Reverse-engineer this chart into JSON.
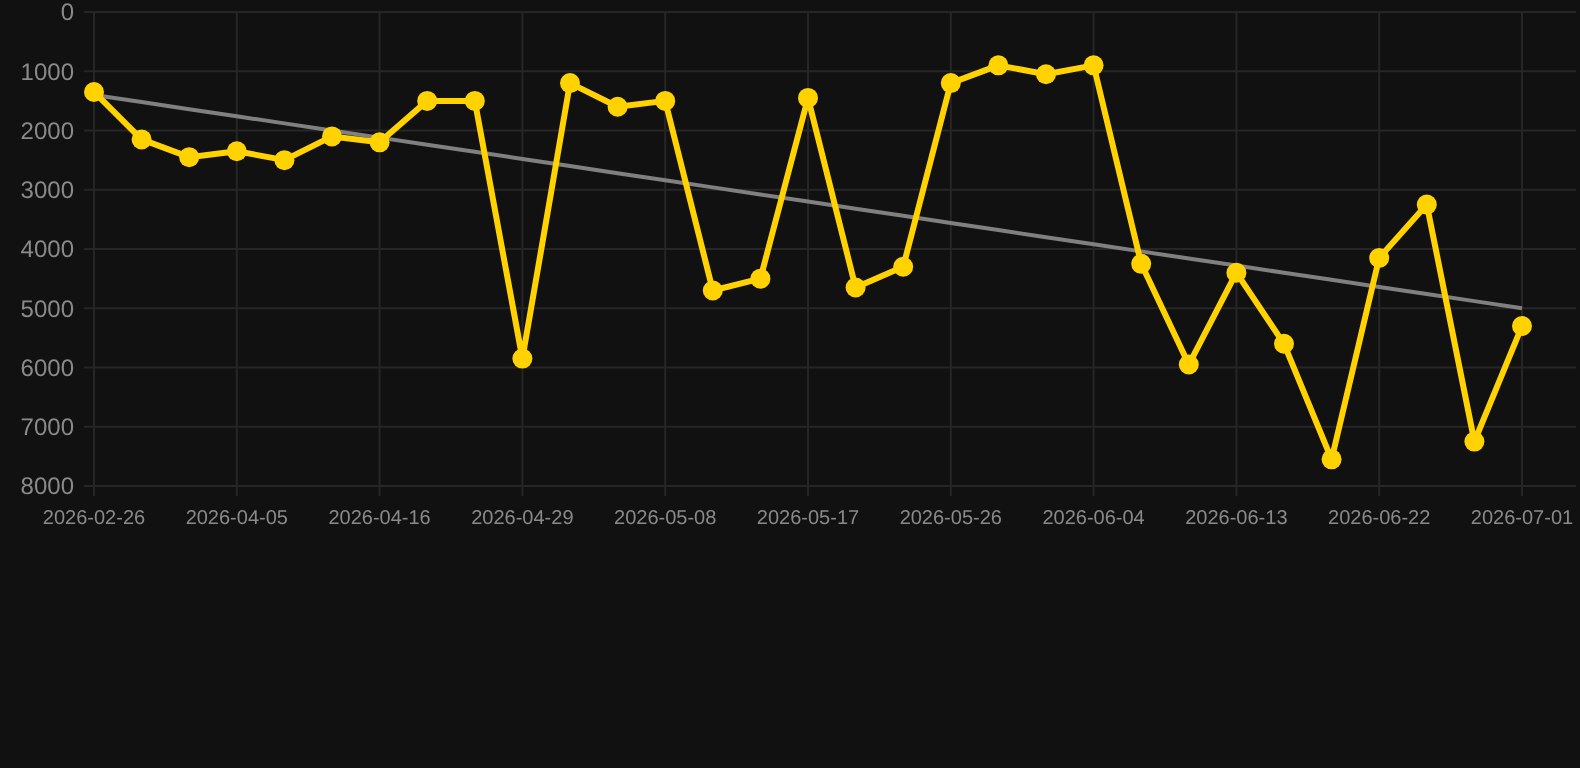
{
  "chart_data": {
    "type": "line",
    "categories": [
      "2026-02-26",
      null,
      null,
      "2026-04-05",
      null,
      null,
      "2026-04-16",
      null,
      null,
      "2026-04-29",
      null,
      null,
      "2026-05-08",
      null,
      null,
      "2026-05-17",
      null,
      null,
      "2026-05-26",
      null,
      null,
      "2026-06-04",
      null,
      null,
      "2026-06-13",
      null,
      null,
      "2026-06-22",
      null,
      null,
      "2026-07-01"
    ],
    "series": [
      {
        "color": "#ffd200",
        "marker": "circle",
        "values": [
          1350,
          2150,
          2450,
          2350,
          2500,
          2100,
          2200,
          1500,
          1500,
          5850,
          1200,
          1600,
          1500,
          4700,
          4500,
          1450,
          4650,
          4300,
          1200,
          900,
          1050,
          900,
          4250,
          5950,
          4400,
          5600,
          7550,
          4150,
          3250,
          7250,
          5300
        ]
      },
      {
        "color": "#808080",
        "marker": "none",
        "values": [
          1400,
          1520,
          1640,
          1760,
          1880,
          2000,
          2120,
          2240,
          2360,
          2480,
          2600,
          2720,
          2840,
          2960,
          3080,
          3200,
          3320,
          3440,
          3560,
          3680,
          3800,
          3920,
          4040,
          4160,
          4280,
          4400,
          4520,
          4640,
          4760,
          4880,
          5000
        ]
      }
    ],
    "ylim": [
      8000,
      0
    ],
    "yticks": [
      0,
      1000,
      2000,
      3000,
      4000,
      5000,
      6000,
      7000,
      8000
    ],
    "grid": true
  }
}
